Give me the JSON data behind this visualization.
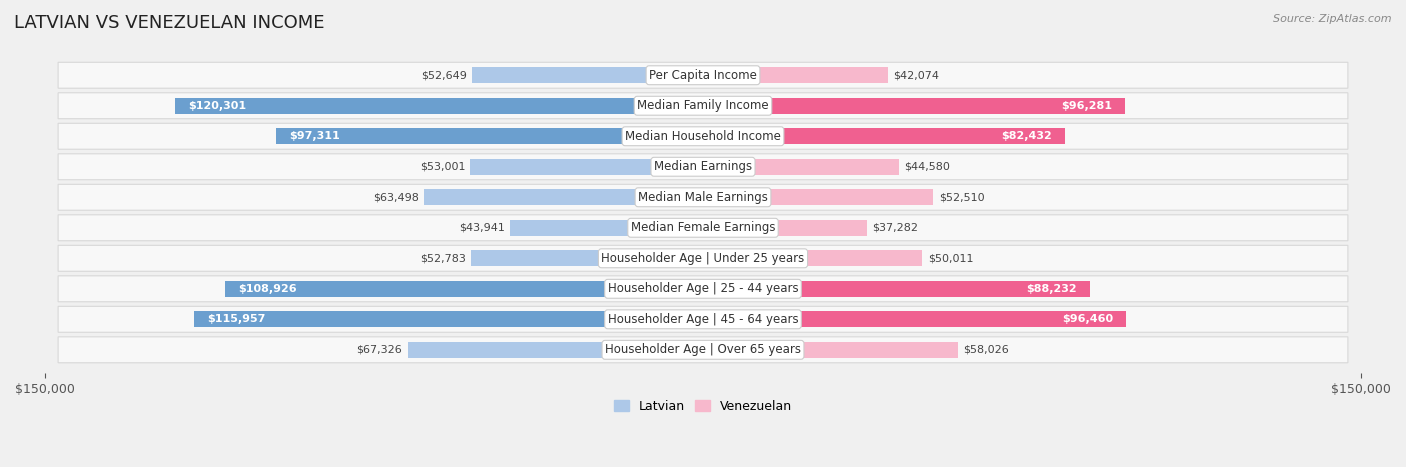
{
  "title": "LATVIAN VS VENEZUELAN INCOME",
  "source": "Source: ZipAtlas.com",
  "categories": [
    "Per Capita Income",
    "Median Family Income",
    "Median Household Income",
    "Median Earnings",
    "Median Male Earnings",
    "Median Female Earnings",
    "Householder Age | Under 25 years",
    "Householder Age | 25 - 44 years",
    "Householder Age | 45 - 64 years",
    "Householder Age | Over 65 years"
  ],
  "latvian": [
    52649,
    120301,
    97311,
    53001,
    63498,
    43941,
    52783,
    108926,
    115957,
    67326
  ],
  "venezuelan": [
    42074,
    96281,
    82432,
    44580,
    52510,
    37282,
    50011,
    88232,
    96460,
    58026
  ],
  "latvian_color_light": "#adc8e8",
  "latvian_color_dark": "#6b9fcf",
  "venezuelan_color_light": "#f7b8cc",
  "venezuelan_color_dark": "#f06090",
  "latvian_label": "Latvian",
  "venezuelan_label": "Venezuelan",
  "max_val": 150000,
  "background_color": "#f0f0f0",
  "row_bg_color": "#f8f8f8",
  "row_border_color": "#d8d8d8",
  "title_fontsize": 13,
  "label_fontsize": 8.5,
  "value_fontsize": 8,
  "axis_label_fontsize": 9,
  "large_threshold": 80000
}
